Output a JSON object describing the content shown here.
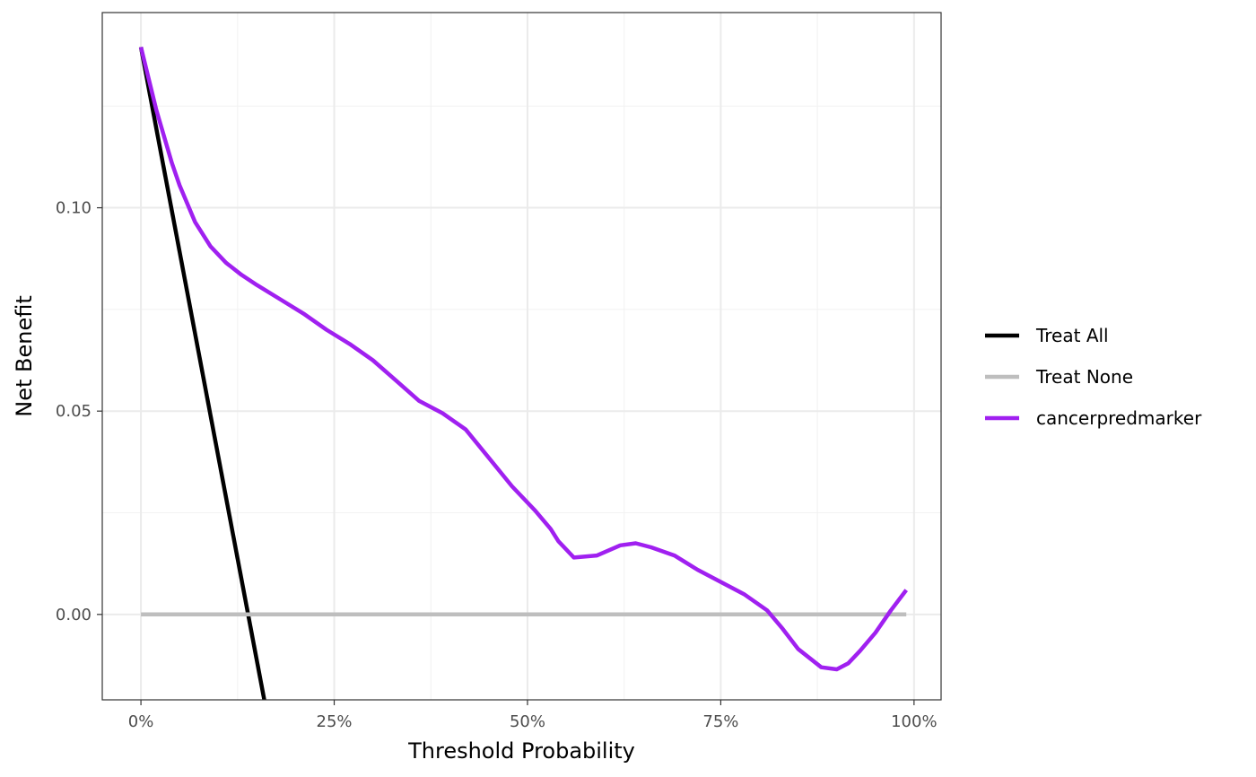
{
  "chart_data": {
    "type": "line",
    "title": "",
    "xlabel": "Threshold Probability",
    "ylabel": "Net Benefit",
    "xlim": [
      -0.1,
      2.07
    ],
    "ylim": [
      -0.021,
      0.148
    ],
    "x_ticks": [
      {
        "value": 0,
        "label": "0%"
      },
      {
        "value": 0.5,
        "label": "25%"
      },
      {
        "value": 1.0,
        "label": "50%"
      },
      {
        "value": 1.5,
        "label": "75%"
      },
      {
        "value": 2.0,
        "label": "100%"
      }
    ],
    "y_ticks": [
      {
        "value": 0.0,
        "label": "0.00"
      },
      {
        "value": 0.05,
        "label": "0.05"
      },
      {
        "value": 0.1,
        "label": "0.10"
      }
    ],
    "grid": true,
    "legend_position": "right",
    "series": [
      {
        "name": "Treat All",
        "color": "#000000",
        "x": [
          0,
          0.32
        ],
        "y": [
          0.1395,
          -0.0215
        ]
      },
      {
        "name": "Treat None",
        "color": "#bebebe",
        "x": [
          0,
          1.98
        ],
        "y": [
          0,
          0
        ]
      },
      {
        "name": "cancerpredmarker",
        "color": "#a020f0",
        "x": [
          0,
          0.04,
          0.08,
          0.1,
          0.14,
          0.18,
          0.22,
          0.26,
          0.3,
          0.36,
          0.42,
          0.48,
          0.54,
          0.6,
          0.66,
          0.72,
          0.78,
          0.84,
          0.9,
          0.96,
          1.02,
          1.06,
          1.08,
          1.12,
          1.18,
          1.24,
          1.28,
          1.32,
          1.38,
          1.44,
          1.5,
          1.56,
          1.62,
          1.66,
          1.7,
          1.76,
          1.8,
          1.83,
          1.86,
          1.9,
          1.94,
          1.98
        ],
        "y": [
          0.1395,
          0.124,
          0.111,
          0.1055,
          0.0965,
          0.0905,
          0.0865,
          0.0835,
          0.081,
          0.0775,
          0.074,
          0.07,
          0.0665,
          0.0625,
          0.0575,
          0.0525,
          0.0495,
          0.0455,
          0.0385,
          0.0315,
          0.0255,
          0.021,
          0.018,
          0.014,
          0.0145,
          0.017,
          0.0175,
          0.0165,
          0.0145,
          0.011,
          0.008,
          0.005,
          0.001,
          -0.0035,
          -0.0085,
          -0.013,
          -0.0135,
          -0.012,
          -0.009,
          -0.0045,
          0.001,
          0.006
        ]
      }
    ]
  }
}
